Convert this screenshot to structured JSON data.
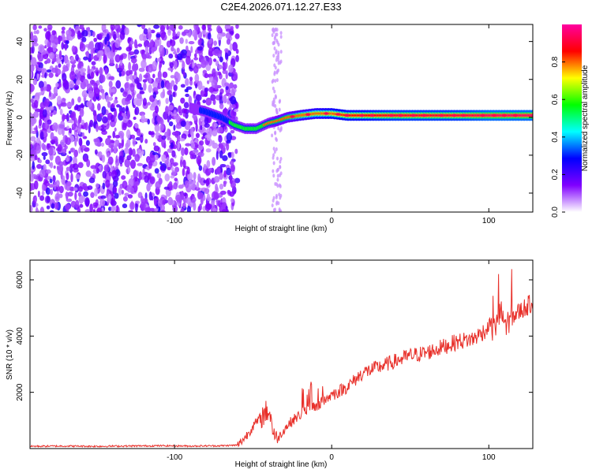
{
  "figure": {
    "title": "C2E4.2026.071.12.27.E33"
  },
  "chart_data": [
    {
      "type": "heatmap",
      "xlabel": "Height of straight line (km)",
      "ylabel": "Frequency (Hz)",
      "xlim": [
        -192,
        128
      ],
      "ylim": [
        -50,
        49
      ],
      "xticks": [
        -100,
        0,
        100
      ],
      "xtick_labels": [
        "-100",
        "0",
        "100"
      ],
      "yticks": [
        -40,
        -20,
        0,
        20,
        40
      ],
      "ytick_labels": [
        "-40",
        "-20",
        "0",
        "20",
        "40"
      ],
      "ridge": {
        "x": [
          -90,
          -80,
          -70,
          -62,
          -55,
          -48,
          -40,
          -35,
          -28,
          -20,
          -10,
          0,
          10,
          20,
          40,
          60,
          80,
          100,
          128
        ],
        "y": [
          5,
          3,
          0,
          -4,
          -6,
          -6,
          -3,
          -2,
          0,
          1,
          2,
          2,
          1,
          1,
          1,
          1,
          1,
          1,
          1
        ],
        "amplitude": [
          0.15,
          0.2,
          0.3,
          0.35,
          0.4,
          0.45,
          0.5,
          0.55,
          0.6,
          0.7,
          0.75,
          0.8,
          0.85,
          0.85,
          0.9,
          0.9,
          0.9,
          0.95,
          0.95
        ]
      },
      "noise_region_x": [
        -192,
        -60
      ],
      "grid": false,
      "colorbar": {
        "label": "Normalized spectral amplitude",
        "range": [
          0,
          1
        ],
        "ticks": [
          0,
          0.2,
          0.4,
          0.6,
          0.8
        ],
        "tick_labels": [
          "0.0",
          "0.2",
          "0.4",
          "0.6",
          "0.8"
        ],
        "colors": [
          "#ffffff",
          "#8000ff",
          "#0000ff",
          "#00ffff",
          "#00ff00",
          "#ffff00",
          "#ff0000",
          "#ff00a0"
        ]
      }
    },
    {
      "type": "line",
      "xlabel": "Height of straight line (km)",
      "ylabel": "SNR (10 * v/v)",
      "xlim": [
        -192,
        128
      ],
      "ylim": [
        0,
        6700
      ],
      "xticks": [
        -100,
        0,
        100
      ],
      "xtick_labels": [
        "-100",
        "0",
        "100"
      ],
      "yticks": [
        2000,
        4000,
        6000
      ],
      "ytick_labels": [
        "2000",
        "4000",
        "6000"
      ],
      "grid": false,
      "series": [
        {
          "color": "#e8302a",
          "x": [
            -192,
            -170,
            -150,
            -130,
            -110,
            -90,
            -70,
            -60,
            -55,
            -50,
            -45,
            -40,
            -37,
            -35,
            -30,
            -25,
            -20,
            -15,
            -10,
            -5,
            0,
            10,
            20,
            30,
            40,
            50,
            60,
            70,
            80,
            90,
            95,
            100,
            105,
            108,
            110,
            112,
            115,
            120,
            128
          ],
          "y": [
            80,
            90,
            80,
            90,
            100,
            90,
            100,
            120,
            400,
            800,
            1100,
            1400,
            600,
            300,
            700,
            1000,
            1200,
            1400,
            1500,
            1700,
            1900,
            2200,
            2700,
            2900,
            3100,
            3300,
            3400,
            3600,
            3800,
            3900,
            4100,
            4300,
            4400,
            4700,
            4500,
            4600,
            4700,
            4900,
            5200
          ]
        }
      ]
    }
  ]
}
